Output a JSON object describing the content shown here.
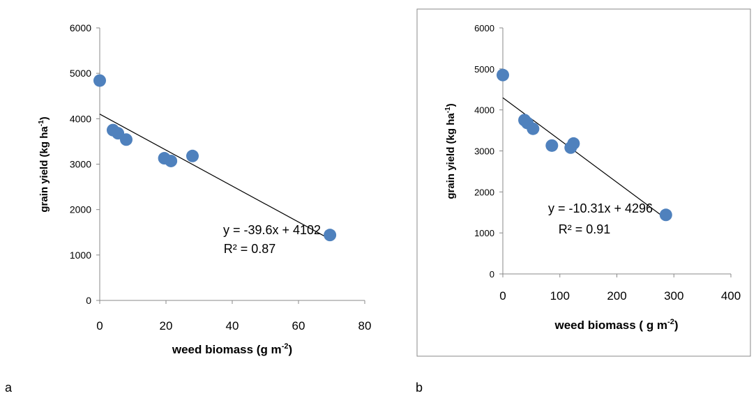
{
  "chart_data": [
    {
      "type": "scatter",
      "panel_label": "a",
      "xlabel_main": "weed biomass (g m",
      "xlabel_sup": "-2",
      "xlabel_end": ")",
      "ylabel_main": "grain yield (kg ha",
      "ylabel_sup": "-1",
      "ylabel_end": ")",
      "xlim": [
        0,
        80
      ],
      "ylim": [
        0,
        6000
      ],
      "xticks": [
        0,
        20,
        40,
        60,
        80
      ],
      "yticks": [
        0,
        1000,
        2000,
        3000,
        4000,
        5000,
        6000
      ],
      "points": [
        {
          "x": 0,
          "y": 4840
        },
        {
          "x": 4,
          "y": 3750
        },
        {
          "x": 5.5,
          "y": 3680
        },
        {
          "x": 8,
          "y": 3540
        },
        {
          "x": 19.5,
          "y": 3130
        },
        {
          "x": 21.5,
          "y": 3070
        },
        {
          "x": 28,
          "y": 3180
        },
        {
          "x": 69.5,
          "y": 1440
        }
      ],
      "trendline": {
        "slope": -39.6,
        "intercept": 4102,
        "x_start": 0,
        "x_end": 69.5
      },
      "equation": "y = -39.6x + 4102",
      "r_squared_label": "R² = 0.87",
      "marker_color": "#4F81BD",
      "grid": false,
      "border": false
    },
    {
      "type": "scatter",
      "panel_label": "b",
      "xlabel_main": "weed biomass ( g m",
      "xlabel_sup": "-2",
      "xlabel_end": ")",
      "ylabel_main": "grain yield (kg ha",
      "ylabel_sup": "-1",
      "ylabel_end": ")",
      "xlim": [
        0,
        400
      ],
      "ylim": [
        0,
        6000
      ],
      "xticks": [
        0,
        100,
        200,
        300,
        400
      ],
      "yticks": [
        0,
        1000,
        2000,
        3000,
        4000,
        5000,
        6000
      ],
      "points": [
        {
          "x": 0,
          "y": 4850
        },
        {
          "x": 38,
          "y": 3750
        },
        {
          "x": 43,
          "y": 3680
        },
        {
          "x": 53,
          "y": 3540
        },
        {
          "x": 86,
          "y": 3130
        },
        {
          "x": 119,
          "y": 3080
        },
        {
          "x": 124,
          "y": 3180
        },
        {
          "x": 286,
          "y": 1440
        }
      ],
      "trendline": {
        "slope": -10.31,
        "intercept": 4296,
        "x_start": 0,
        "x_end": 286
      },
      "equation": "y = -10.31x + 4296",
      "r_squared_label": "R² = 0.91",
      "marker_color": "#4F81BD",
      "grid": false,
      "border": true
    }
  ]
}
